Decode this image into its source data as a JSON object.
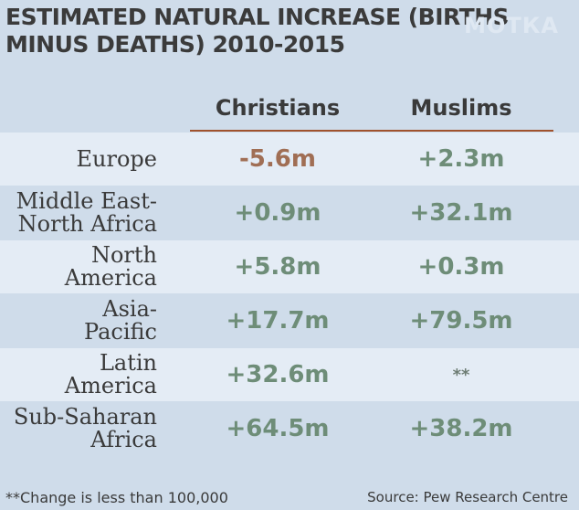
{
  "chart_data": {
    "type": "table",
    "title": "ESTIMATED NATURAL INCREASE (BIRTHS MINUS DEATHS) 2010-2015",
    "columns": [
      "Christians",
      "Muslims"
    ],
    "rows": [
      {
        "region": "Europe",
        "christians": "-5.6m",
        "muslims": "+2.3m"
      },
      {
        "region": "Middle East-North Africa",
        "region_lines": [
          "Middle East-",
          "North Africa"
        ],
        "christians": "+0.9m",
        "muslims": "+32.1m"
      },
      {
        "region": "North America",
        "region_lines": [
          "North",
          "America"
        ],
        "christians": "+5.8m",
        "muslims": "+0.3m"
      },
      {
        "region": "Asia-Pacific",
        "region_lines": [
          "Asia-",
          "Pacific"
        ],
        "christians": "+17.7m",
        "muslims": "+79.5m"
      },
      {
        "region": "Latin America",
        "region_lines": [
          "Latin",
          "America"
        ],
        "christians": "+32.6m",
        "muslims": "**"
      },
      {
        "region": "Sub-Saharan Africa",
        "region_lines": [
          "Sub-Saharan",
          "Africa"
        ],
        "christians": "+64.5m",
        "muslims": "+38.2m"
      }
    ],
    "values_millions": {
      "christians": [
        -5.6,
        0.9,
        5.8,
        17.7,
        32.6,
        64.5
      ],
      "muslims": [
        2.3,
        32.1,
        0.3,
        79.5,
        null,
        38.2
      ]
    }
  },
  "title_lines": [
    "ESTIMATED NATURAL INCREASE (BIRTHS",
    "MINUS DEATHS) 2010-2015"
  ],
  "watermark": "МОТКА",
  "footnote": "**Change is less than 100,000",
  "source": "Source: Pew Research Centre",
  "colors": {
    "background": "#cfdcea",
    "row_stripe": "#e4ecf5",
    "positive_value": "#6e8d78",
    "negative_value": "#a06e54",
    "header_rule": "#a0522d"
  }
}
